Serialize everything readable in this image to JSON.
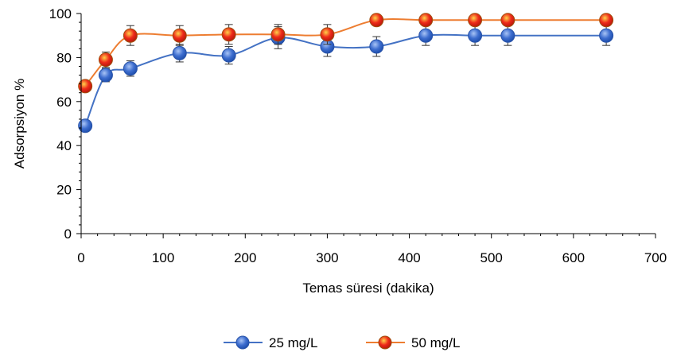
{
  "chart_data": {
    "type": "line",
    "xlabel": "Temas süresi (dakika)",
    "ylabel": "Adsorpsiyon %",
    "xlim": [
      0,
      700
    ],
    "ylim": [
      0,
      100
    ],
    "xticks": [
      0,
      100,
      200,
      300,
      400,
      500,
      600,
      700
    ],
    "yticks": [
      0,
      20,
      40,
      60,
      80,
      100
    ],
    "grid": false,
    "legend_position": "bottom",
    "series": [
      {
        "name": "25 mg/L",
        "color": "#4472C4",
        "marker_color": "#3f6fd0",
        "x": [
          5,
          30,
          60,
          120,
          180,
          240,
          300,
          360,
          420,
          480,
          520,
          640
        ],
        "y": [
          49,
          72,
          75,
          82,
          81,
          89,
          85,
          85,
          90,
          90,
          90,
          90
        ],
        "error": [
          1.5,
          3,
          3.5,
          4,
          4,
          5,
          4.5,
          4.5,
          4.5,
          4.5,
          4.5,
          4.5
        ]
      },
      {
        "name": "50 mg/L",
        "color": "#ED7D31",
        "marker_color": "#ee2a1a",
        "x": [
          5,
          30,
          60,
          120,
          180,
          240,
          300,
          360,
          420,
          480,
          520,
          640
        ],
        "y": [
          67,
          79,
          90,
          90,
          90.5,
          90.5,
          90.5,
          97,
          97,
          97,
          97,
          97
        ],
        "error": [
          1.5,
          3.5,
          4.5,
          4.5,
          4.5,
          4.5,
          4.5,
          0.8,
          0.8,
          0.8,
          0.8,
          0.8
        ]
      }
    ]
  }
}
